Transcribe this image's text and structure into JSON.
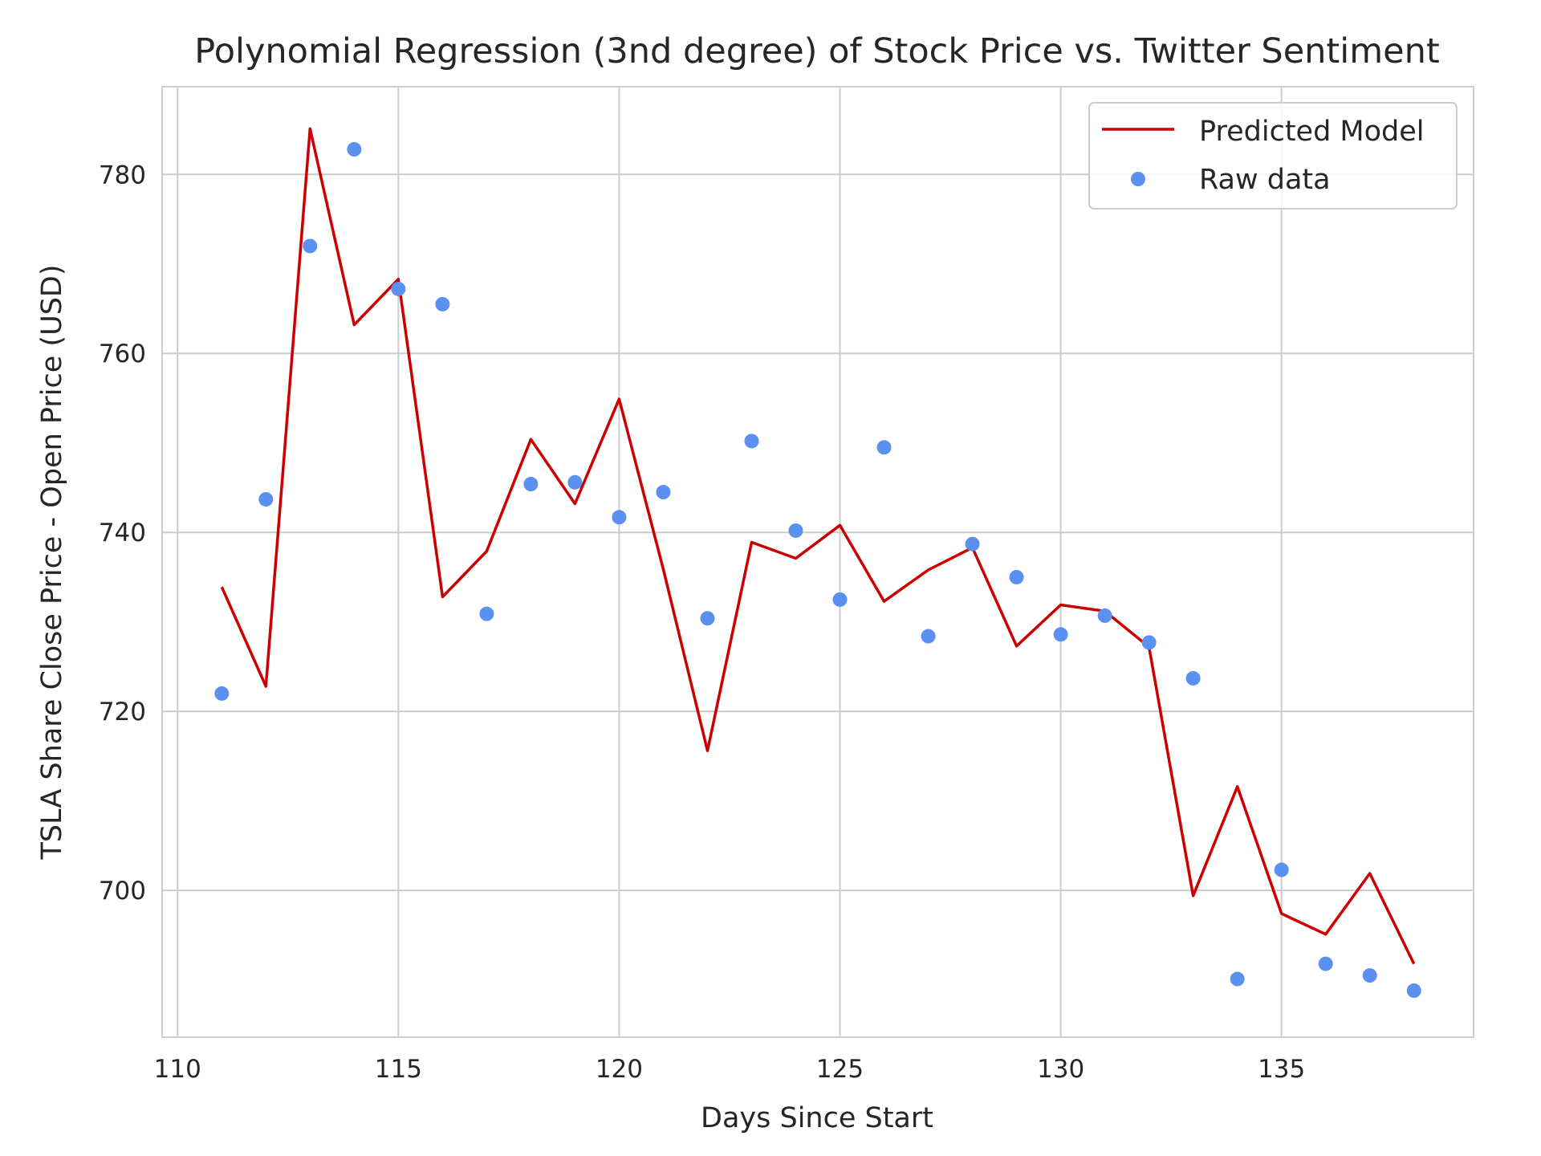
{
  "chart_data": {
    "type": "line",
    "title": "Polynomial Regression (3nd degree) of Stock Price vs. Twitter Sentiment",
    "xlabel": "Days Since Start",
    "ylabel": "TSLA Share Close Price - Open Price (USD)",
    "xlim": [
      109.65,
      139.35
    ],
    "ylim": [
      683.6,
      789.8
    ],
    "xticks": [
      110,
      115,
      120,
      125,
      130,
      135
    ],
    "yticks": [
      700,
      720,
      740,
      760,
      780
    ],
    "grid": true,
    "legend_position": "upper right",
    "series": [
      {
        "name": "Predicted Model",
        "type": "line",
        "color": "#cc0000",
        "x": [
          111,
          112,
          113,
          114,
          115,
          116,
          117,
          118,
          119,
          120,
          121,
          122,
          123,
          124,
          125,
          126,
          127,
          128,
          129,
          130,
          131,
          132,
          133,
          134,
          135,
          136,
          137,
          138
        ],
        "y": [
          733.9,
          722.8,
          785.1,
          763.2,
          768.3,
          732.8,
          737.9,
          750.4,
          743.2,
          754.9,
          735.9,
          715.6,
          738.9,
          737.1,
          740.8,
          732.3,
          735.8,
          738.3,
          727.3,
          731.9,
          731.2,
          727.2,
          699.4,
          711.6,
          697.4,
          695.1,
          701.9,
          691.8
        ]
      },
      {
        "name": "Raw data",
        "type": "scatter",
        "color": "#5b8ff0",
        "x": [
          111,
          112,
          113,
          114,
          115,
          116,
          117,
          118,
          119,
          120,
          121,
          122,
          123,
          124,
          125,
          126,
          127,
          128,
          129,
          130,
          131,
          132,
          133,
          134,
          135,
          136,
          137,
          138
        ],
        "y": [
          722.0,
          743.7,
          772.0,
          782.8,
          767.2,
          765.5,
          730.9,
          745.4,
          745.6,
          741.7,
          744.5,
          730.4,
          750.2,
          740.2,
          732.5,
          749.5,
          728.4,
          738.7,
          735.0,
          728.6,
          730.7,
          727.7,
          723.7,
          690.1,
          702.3,
          691.8,
          690.5,
          688.8
        ]
      }
    ]
  }
}
